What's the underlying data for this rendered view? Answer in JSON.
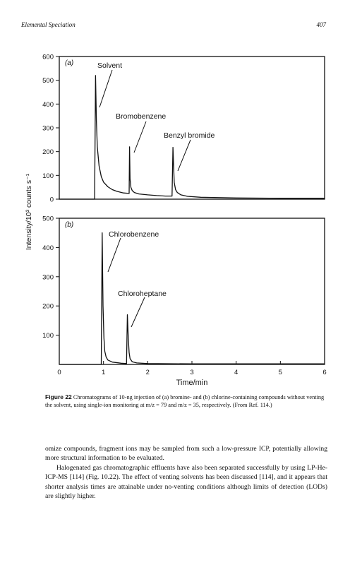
{
  "header": {
    "title": "Elemental Speciation",
    "page_number": "407"
  },
  "chart_data": [
    {
      "type": "line",
      "panel": "(a)",
      "ylabel": "Intensity/10³ counts s⁻¹",
      "xlabel": "Time/min",
      "ylim": [
        0,
        600
      ],
      "xlim": [
        0,
        6
      ],
      "y_ticks": [
        "0",
        "100",
        "200",
        "300",
        "400",
        "500",
        "600"
      ],
      "annotations": [
        "Solvent",
        "Bromobenzene",
        "Benzyl bromide"
      ],
      "series": [
        {
          "x": [
            0.0,
            0.8,
            0.82,
            0.84,
            0.86,
            0.9,
            0.95,
            1.0,
            1.1,
            1.2,
            1.3,
            1.45,
            1.58,
            1.59,
            1.6,
            1.62,
            1.65,
            1.7,
            1.8,
            2.0,
            2.2,
            2.4,
            2.55,
            2.57,
            2.6,
            2.63,
            2.67,
            2.75,
            2.9,
            3.2,
            4.0,
            5.0,
            6.0
          ],
          "y": [
            0,
            0,
            520,
            330,
            220,
            140,
            95,
            72,
            52,
            40,
            33,
            26,
            24,
            220,
            85,
            50,
            36,
            28,
            22,
            18,
            15,
            13,
            13,
            218,
            70,
            40,
            28,
            18,
            12,
            8,
            5,
            4,
            4
          ]
        }
      ]
    },
    {
      "type": "line",
      "panel": "(b)",
      "xlabel": "Time/min",
      "ylim": [
        0,
        500
      ],
      "xlim": [
        0,
        6
      ],
      "x_ticks": [
        "0",
        "1",
        "2",
        "3",
        "4",
        "5",
        "6"
      ],
      "y_ticks": [
        "100",
        "200",
        "300",
        "400",
        "500"
      ],
      "annotations": [
        "Chlorobenzene",
        "Chloroheptane"
      ],
      "series": [
        {
          "x": [
            0.0,
            0.95,
            0.97,
            0.99,
            1.01,
            1.03,
            1.06,
            1.1,
            1.2,
            1.4,
            1.52,
            1.54,
            1.56,
            1.58,
            1.6,
            1.65,
            1.75,
            2.0,
            3.0,
            4.0,
            5.0,
            6.0
          ],
          "y": [
            0,
            0,
            450,
            200,
            90,
            45,
            25,
            15,
            8,
            4,
            3,
            170,
            90,
            40,
            20,
            9,
            5,
            3,
            2,
            2,
            2,
            2
          ]
        }
      ]
    }
  ],
  "caption": {
    "label": "Figure 22",
    "text": "Chromatograms of 10-ng injection of (a) bromine- and (b) chlorine-containing compounds without venting the solvent, using single-ion monitoring at m/z = 79 and m/z = 35, respectively. (From Ref. 114.)"
  },
  "body": {
    "p1": "omize compounds, fragment ions may be sampled from such a low-pressure ICP, potentially allowing more structural information to be evaluated.",
    "p2": "Halogenated gas chromatographic effluents have also been separated successfully by using LP-He-ICP-MS [114] (Fig. 10.22). The effect of venting solvents has been discussed [114], and it appears that shorter analysis times are attainable under no-venting conditions although limits of detection (LODs) are slightly higher."
  }
}
